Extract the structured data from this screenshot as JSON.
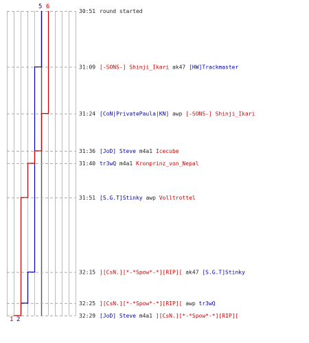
{
  "colors": {
    "blue": "#0000aa",
    "red": "#cc0000",
    "black": "#222222",
    "grid": "#bbbbbb",
    "dash": "#aaaaaa",
    "center": "#555555"
  },
  "chart_data": {
    "type": "line",
    "title": "",
    "xlabel": "",
    "ylabel": "",
    "x_range": [
      0,
      10
    ],
    "y_domain_seconds": [
      1851,
      1949
    ],
    "grid": true,
    "series": [
      {
        "color": "blue",
        "start_label": "5",
        "end_label": "2",
        "steps": [
          {
            "time": "30:51",
            "value": 5
          },
          {
            "time": "31:09",
            "value": 4
          },
          {
            "time": "32:15",
            "value": 3
          },
          {
            "time": "32:25",
            "value": 2
          },
          {
            "time": "32:29",
            "value": 2
          }
        ]
      },
      {
        "color": "red",
        "start_label": "6",
        "end_label": "1",
        "steps": [
          {
            "time": "30:51",
            "value": 6
          },
          {
            "time": "31:24",
            "value": 5
          },
          {
            "time": "31:36",
            "value": 4
          },
          {
            "time": "31:40",
            "value": 3
          },
          {
            "time": "31:51",
            "value": 2
          },
          {
            "time": "32:29",
            "value": 1
          }
        ]
      }
    ],
    "events": [
      {
        "time": "30:51",
        "parts": [
          {
            "text": "round started",
            "color": "black"
          }
        ]
      },
      {
        "time": "31:09",
        "parts": [
          {
            "text": "[-SONS-] Shinji_Ikari",
            "color": "red"
          },
          {
            "text": " ak47 ",
            "color": "black"
          },
          {
            "text": "[HW]Trackmaster",
            "color": "blue"
          }
        ]
      },
      {
        "time": "31:24",
        "parts": [
          {
            "text": "[CoN|PrivatePaula|KN]",
            "color": "blue"
          },
          {
            "text": " awp ",
            "color": "black"
          },
          {
            "text": "[-SONS-] Shinji_Ikari",
            "color": "red"
          }
        ]
      },
      {
        "time": "31:36",
        "parts": [
          {
            "text": "[JoD] Steve",
            "color": "blue"
          },
          {
            "text": " m4a1 ",
            "color": "black"
          },
          {
            "text": "Icecube",
            "color": "red"
          }
        ]
      },
      {
        "time": "31:40",
        "parts": [
          {
            "text": "tr3wQ",
            "color": "blue"
          },
          {
            "text": " m4a1 ",
            "color": "black"
          },
          {
            "text": "Kronprinz_von_Nepal",
            "color": "red"
          }
        ]
      },
      {
        "time": "31:51",
        "parts": [
          {
            "text": "[S.G.T]Stinky",
            "color": "blue"
          },
          {
            "text": " awp ",
            "color": "black"
          },
          {
            "text": "Volltrottel",
            "color": "red"
          }
        ]
      },
      {
        "time": "32:15",
        "parts": [
          {
            "text": "][CsN.][*-*Spow*-*][RIP][",
            "color": "red"
          },
          {
            "text": " ak47 ",
            "color": "black"
          },
          {
            "text": "[S.G.T]Stinky",
            "color": "blue"
          }
        ]
      },
      {
        "time": "32:25",
        "parts": [
          {
            "text": "][CsN.][*-*Spow*-*][RIP][",
            "color": "red"
          },
          {
            "text": " awp ",
            "color": "black"
          },
          {
            "text": "tr3wQ",
            "color": "blue"
          }
        ]
      },
      {
        "time": "32:29",
        "parts": [
          {
            "text": "[JoD] Steve",
            "color": "blue"
          },
          {
            "text": " m4a1 ",
            "color": "black"
          },
          {
            "text": "][CsN.][*-*Spow*-*][RIP][",
            "color": "red"
          }
        ]
      }
    ]
  }
}
